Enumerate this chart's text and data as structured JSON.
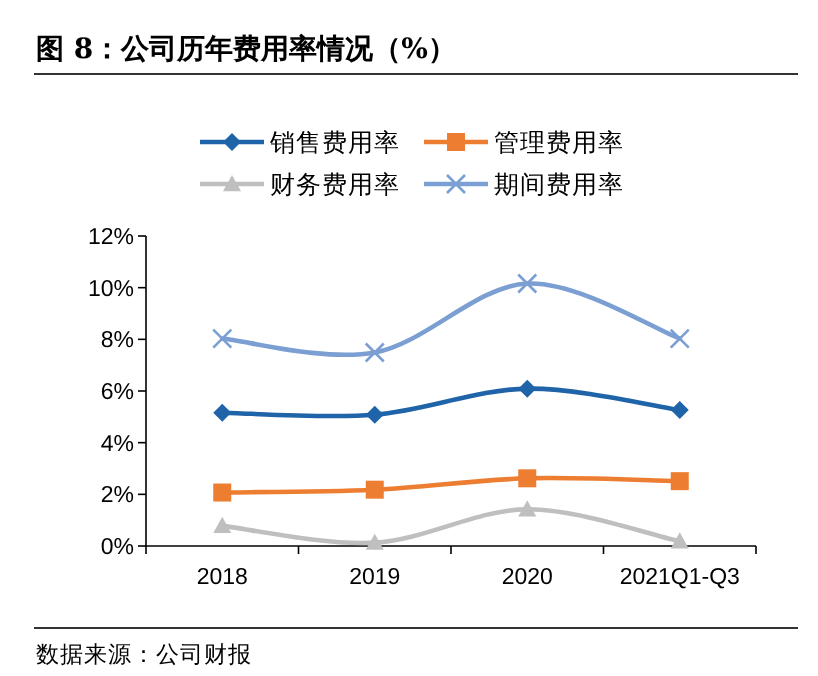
{
  "chart_data": {
    "type": "line",
    "title": "图 8：公司历年费用率情况（%）",
    "categories": [
      "2018",
      "2019",
      "2020",
      "2021Q1-Q3"
    ],
    "series": [
      {
        "name": "销售费用率",
        "color": "#1f64a8",
        "marker": "diamond",
        "values": [
          5.16,
          5.08,
          6.09,
          5.26
        ]
      },
      {
        "name": "管理费用率",
        "color": "#ed7d31",
        "marker": "square",
        "values": [
          2.07,
          2.18,
          2.62,
          2.51
        ]
      },
      {
        "name": "财务费用率",
        "color": "#bfbfbf",
        "marker": "triangle",
        "values": [
          0.78,
          0.13,
          1.42,
          0.18
        ]
      },
      {
        "name": "期间费用率",
        "color": "#7b9fd3",
        "marker": "cross",
        "values": [
          8.03,
          7.49,
          10.16,
          8.03
        ]
      }
    ],
    "ylim": [
      0,
      12
    ],
    "yticks": [
      {
        "value": 0,
        "label": "0%"
      },
      {
        "value": 2,
        "label": "2%"
      },
      {
        "value": 4,
        "label": "4%"
      },
      {
        "value": 6,
        "label": "6%"
      },
      {
        "value": 8,
        "label": "8%"
      },
      {
        "value": 10,
        "label": "10%"
      },
      {
        "value": 12,
        "label": "12%"
      }
    ],
    "grid": false,
    "legend": "top",
    "annotations": [
      "数据来源：公司财报"
    ]
  }
}
